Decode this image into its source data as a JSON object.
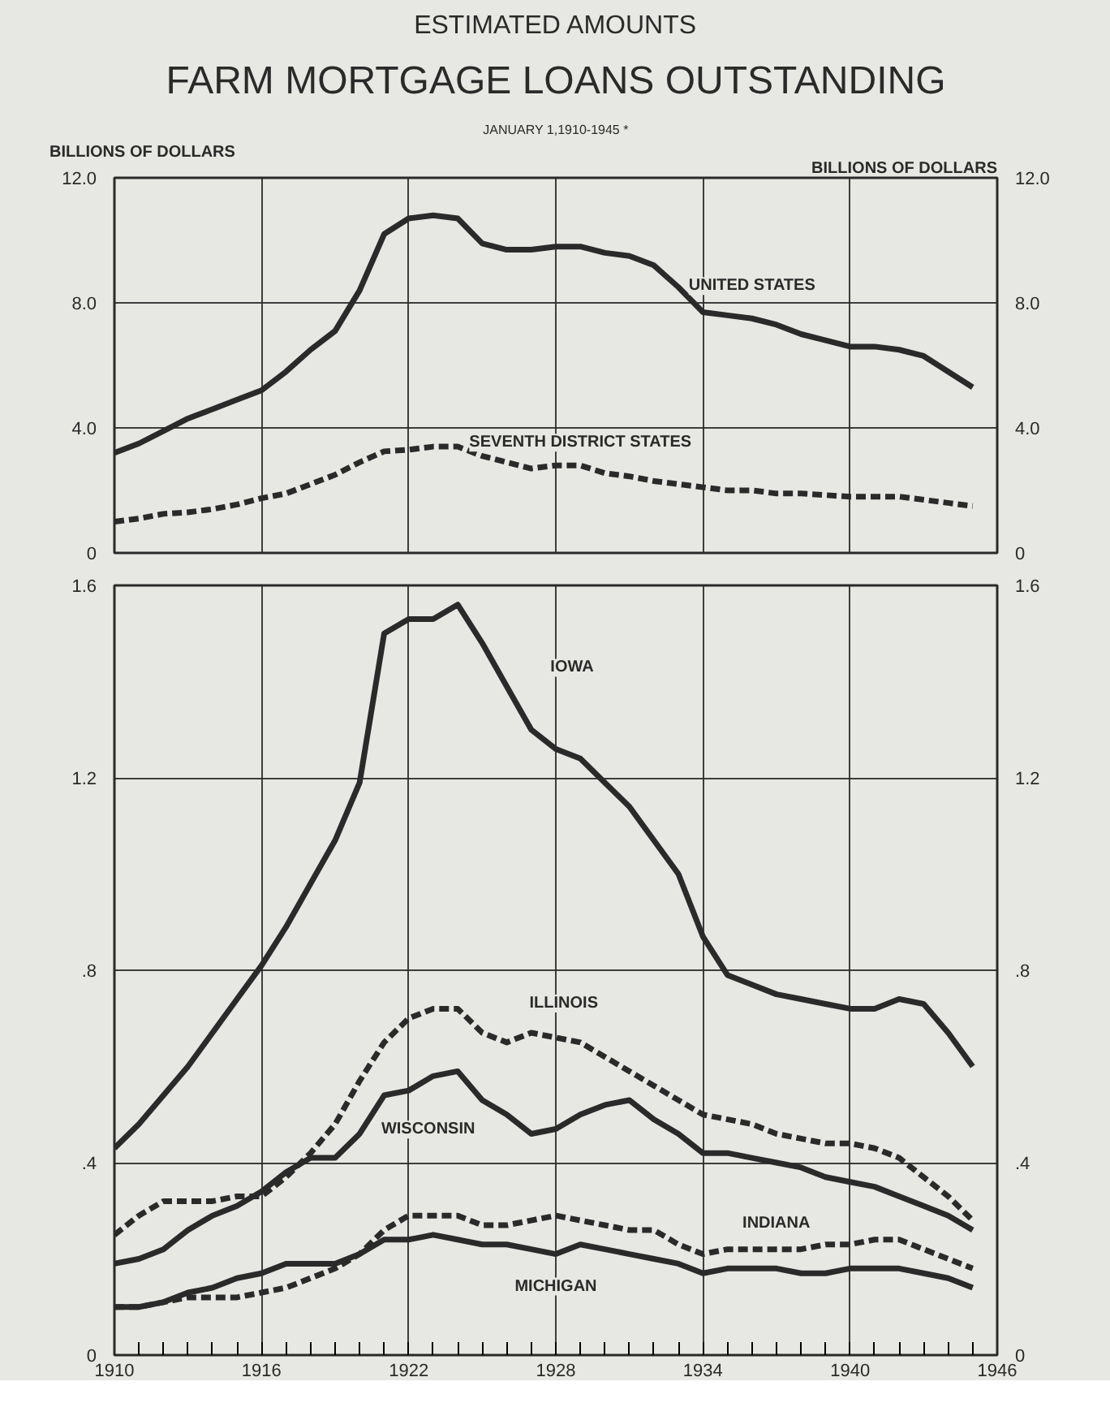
{
  "chart_data": [
    {
      "type": "line",
      "title": "FARM MORTGAGE LOANS OUTSTANDING",
      "subtitle": "JANUARY 1,1910-1945 *",
      "annotations": [
        "ESTIMATED AMOUNTS"
      ],
      "ylabel": "BILLIONS OF DOLLARS",
      "y2label": "BILLIONS OF DOLLARS",
      "x": [
        1910,
        1911,
        1912,
        1913,
        1914,
        1915,
        1916,
        1917,
        1918,
        1919,
        1920,
        1921,
        1922,
        1923,
        1924,
        1925,
        1926,
        1927,
        1928,
        1929,
        1930,
        1931,
        1932,
        1933,
        1934,
        1935,
        1936,
        1937,
        1938,
        1939,
        1940,
        1941,
        1942,
        1943,
        1944,
        1945
      ],
      "series": [
        {
          "name": "UNITED STATES",
          "color": "#2a2a2a",
          "line_style": "solid",
          "values": [
            3.2,
            3.5,
            3.9,
            4.3,
            4.6,
            4.9,
            5.2,
            5.8,
            6.5,
            7.1,
            8.4,
            10.2,
            10.7,
            10.8,
            10.7,
            9.9,
            9.7,
            9.7,
            9.8,
            9.8,
            9.6,
            9.5,
            9.2,
            8.5,
            7.7,
            7.6,
            7.5,
            7.3,
            7.0,
            6.8,
            6.6,
            6.6,
            6.5,
            6.3,
            5.8,
            5.3
          ]
        },
        {
          "name": "SEVENTH DISTRICT STATES",
          "color": "#2a2a2a",
          "line_style": "dashed",
          "values": [
            1.0,
            1.1,
            1.25,
            1.3,
            1.4,
            1.55,
            1.75,
            1.9,
            2.2,
            2.5,
            2.9,
            3.25,
            3.3,
            3.4,
            3.4,
            3.1,
            2.9,
            2.7,
            2.8,
            2.8,
            2.55,
            2.45,
            2.3,
            2.2,
            2.1,
            2.0,
            2.0,
            1.9,
            1.9,
            1.85,
            1.8,
            1.8,
            1.8,
            1.7,
            1.6,
            1.5
          ]
        }
      ],
      "xlim": [
        1910,
        1946
      ],
      "xticks": [
        1910,
        1916,
        1922,
        1928,
        1934,
        1940,
        1946
      ],
      "ylim": [
        0,
        12
      ],
      "yticks": [
        {
          "value": 0,
          "label": "0"
        },
        {
          "value": 4,
          "label": "4.0"
        },
        {
          "value": 8,
          "label": "8.0"
        },
        {
          "value": 12,
          "label": "12.0"
        }
      ],
      "y2lim": [
        0,
        12
      ],
      "y2ticks": [
        {
          "value": 0,
          "label": "0"
        },
        {
          "value": 4,
          "label": "4.0"
        },
        {
          "value": 8,
          "label": "8.0"
        },
        {
          "value": 12,
          "label": "12.0"
        }
      ],
      "tick_labels": "y",
      "grid": true
    },
    {
      "type": "line",
      "x": [
        1910,
        1911,
        1912,
        1913,
        1914,
        1915,
        1916,
        1917,
        1918,
        1919,
        1920,
        1921,
        1922,
        1923,
        1924,
        1925,
        1926,
        1927,
        1928,
        1929,
        1930,
        1931,
        1932,
        1933,
        1934,
        1935,
        1936,
        1937,
        1938,
        1939,
        1940,
        1941,
        1942,
        1943,
        1944,
        1945
      ],
      "series": [
        {
          "name": "IOWA",
          "color": "#2a2a2a",
          "line_style": "solid",
          "values": [
            0.43,
            0.48,
            0.54,
            0.6,
            0.67,
            0.74,
            0.81,
            0.89,
            0.98,
            1.07,
            1.19,
            1.5,
            1.53,
            1.53,
            1.56,
            1.48,
            1.39,
            1.3,
            1.26,
            1.24,
            1.19,
            1.14,
            1.07,
            1.0,
            0.87,
            0.79,
            0.77,
            0.75,
            0.74,
            0.73,
            0.72,
            0.72,
            0.74,
            0.73,
            0.67,
            0.6
          ]
        },
        {
          "name": "ILLINOIS",
          "color": "#2a2a2a",
          "line_style": "dashed",
          "values": [
            0.25,
            0.29,
            0.32,
            0.32,
            0.32,
            0.33,
            0.33,
            0.37,
            0.42,
            0.48,
            0.57,
            0.65,
            0.7,
            0.72,
            0.72,
            0.67,
            0.65,
            0.67,
            0.66,
            0.65,
            0.62,
            0.59,
            0.56,
            0.53,
            0.5,
            0.49,
            0.48,
            0.46,
            0.45,
            0.44,
            0.44,
            0.43,
            0.41,
            0.37,
            0.33,
            0.28
          ]
        },
        {
          "name": "WISCONSIN",
          "color": "#2a2a2a",
          "line_style": "solid",
          "values": [
            0.19,
            0.2,
            0.22,
            0.26,
            0.29,
            0.31,
            0.34,
            0.38,
            0.41,
            0.41,
            0.46,
            0.54,
            0.55,
            0.58,
            0.59,
            0.53,
            0.5,
            0.46,
            0.47,
            0.5,
            0.52,
            0.53,
            0.49,
            0.46,
            0.42,
            0.42,
            0.41,
            0.4,
            0.39,
            0.37,
            0.36,
            0.35,
            0.33,
            0.31,
            0.29,
            0.26
          ]
        },
        {
          "name": "INDIANA",
          "color": "#2a2a2a",
          "line_style": "dashed",
          "values": [
            0.1,
            0.1,
            0.11,
            0.12,
            0.12,
            0.12,
            0.13,
            0.14,
            0.16,
            0.18,
            0.21,
            0.26,
            0.29,
            0.29,
            0.29,
            0.27,
            0.27,
            0.28,
            0.29,
            0.28,
            0.27,
            0.26,
            0.26,
            0.23,
            0.21,
            0.22,
            0.22,
            0.22,
            0.22,
            0.23,
            0.23,
            0.24,
            0.24,
            0.22,
            0.2,
            0.18
          ]
        },
        {
          "name": "MICHIGAN",
          "color": "#2a2a2a",
          "line_style": "solid",
          "values": [
            0.1,
            0.1,
            0.11,
            0.13,
            0.14,
            0.16,
            0.17,
            0.19,
            0.19,
            0.19,
            0.21,
            0.24,
            0.24,
            0.25,
            0.24,
            0.23,
            0.23,
            0.22,
            0.21,
            0.23,
            0.22,
            0.21,
            0.2,
            0.19,
            0.17,
            0.18,
            0.18,
            0.18,
            0.17,
            0.17,
            0.18,
            0.18,
            0.18,
            0.17,
            0.16,
            0.14
          ]
        }
      ],
      "xlim": [
        1910,
        1946
      ],
      "xticks": [
        1910,
        {
          "value": 1911,
          "label": null
        },
        {
          "value": 1912,
          "label": null
        },
        {
          "value": 1913,
          "label": null
        },
        {
          "value": 1914,
          "label": null
        },
        {
          "value": 1915,
          "label": null
        },
        1916,
        {
          "value": 1917,
          "label": null
        },
        {
          "value": 1918,
          "label": null
        },
        {
          "value": 1919,
          "label": null
        },
        {
          "value": 1920,
          "label": null
        },
        {
          "value": 1921,
          "label": null
        },
        1922,
        {
          "value": 1923,
          "label": null
        },
        {
          "value": 1924,
          "label": null
        },
        {
          "value": 1925,
          "label": null
        },
        {
          "value": 1926,
          "label": null
        },
        {
          "value": 1927,
          "label": null
        },
        1928,
        {
          "value": 1929,
          "label": null
        },
        {
          "value": 1930,
          "label": null
        },
        {
          "value": 1931,
          "label": null
        },
        {
          "value": 1932,
          "label": null
        },
        {
          "value": 1933,
          "label": null
        },
        1934,
        {
          "value": 1935,
          "label": null
        },
        {
          "value": 1936,
          "label": null
        },
        {
          "value": 1937,
          "label": null
        },
        {
          "value": 1938,
          "label": null
        },
        {
          "value": 1939,
          "label": null
        },
        1940,
        {
          "value": 1941,
          "label": null
        },
        {
          "value": 1942,
          "label": null
        },
        {
          "value": 1943,
          "label": null
        },
        {
          "value": 1944,
          "label": null
        },
        {
          "value": 1945,
          "label": null
        },
        1946
      ],
      "ylim": [
        0,
        1.6
      ],
      "yticks": [
        {
          "value": 0,
          "label": "0"
        },
        {
          "value": 0.4,
          "label": ".4"
        },
        {
          "value": 0.8,
          "label": ".8"
        },
        {
          "value": 1.2,
          "label": "1.2"
        },
        {
          "value": 1.6,
          "label": "1.6"
        }
      ],
      "y2lim": [
        0,
        1.6
      ],
      "y2ticks": [
        {
          "value": 0,
          "label": "0"
        },
        {
          "value": 0.4,
          "label": ".4"
        },
        {
          "value": 0.8,
          "label": ".8"
        },
        {
          "value": 1.2,
          "label": "1.2"
        },
        {
          "value": 1.6,
          "label": "1.6"
        }
      ],
      "grid": true
    }
  ]
}
